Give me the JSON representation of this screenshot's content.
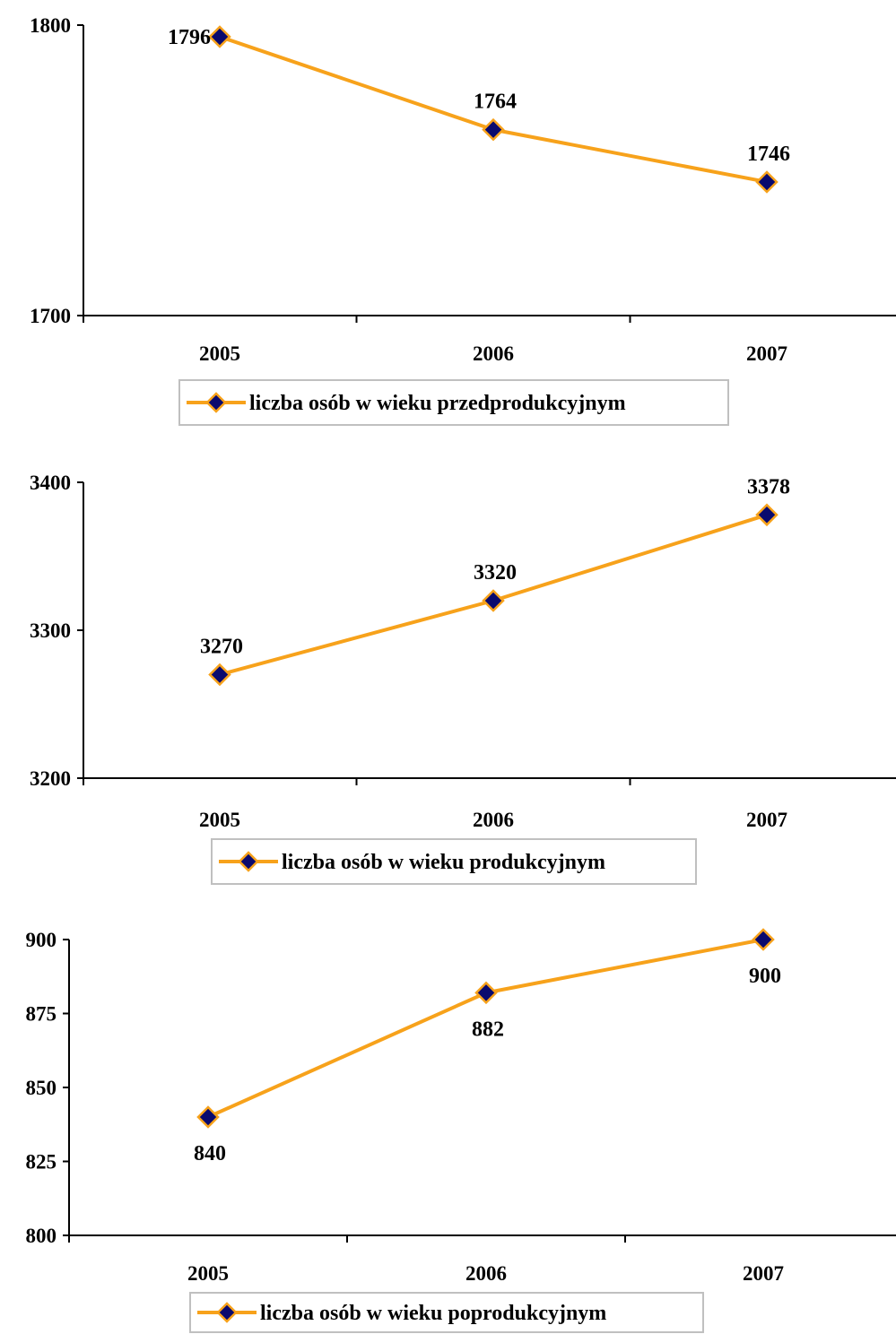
{
  "colors": {
    "line": "#F7A21B",
    "marker_fill": "#0A0A6E",
    "marker_stroke": "#F7A21B",
    "axis": "#000000",
    "legend_border": "#C0C0C0"
  },
  "chart_data": [
    {
      "type": "line",
      "categories": [
        "2005",
        "2006",
        "2007"
      ],
      "series": [
        {
          "name": "liczba osób w wieku przedprodukcyjnym",
          "values": [
            1796,
            1764,
            1746
          ]
        }
      ],
      "data_labels": [
        "1796",
        "1764",
        "1746"
      ],
      "data_label_position": "above",
      "ylim": [
        1700,
        1800
      ],
      "y_ticks": [
        "1700",
        "1800"
      ],
      "y_tick_values": [
        1700,
        1800
      ],
      "legend": "bottom",
      "grid": false
    },
    {
      "type": "line",
      "categories": [
        "2005",
        "2006",
        "2007"
      ],
      "series": [
        {
          "name": "liczba osób w wieku produkcyjnym",
          "values": [
            3270,
            3320,
            3378
          ]
        }
      ],
      "data_labels": [
        "3270",
        "3320",
        "3378"
      ],
      "data_label_position": "above",
      "ylim": [
        3200,
        3400
      ],
      "y_ticks": [
        "3200",
        "3300",
        "3400"
      ],
      "y_tick_values": [
        3200,
        3300,
        3400
      ],
      "legend": "bottom",
      "grid": false
    },
    {
      "type": "line",
      "categories": [
        "2005",
        "2006",
        "2007"
      ],
      "series": [
        {
          "name": "liczba osób w wieku poprodukcyjnym",
          "values": [
            840,
            882,
            900
          ]
        }
      ],
      "data_labels": [
        "840",
        "882",
        "900"
      ],
      "data_label_position": "below",
      "ylim": [
        800,
        900
      ],
      "y_ticks": [
        "800",
        "825",
        "850",
        "875",
        "900"
      ],
      "y_tick_values": [
        800,
        825,
        850,
        875,
        900
      ],
      "legend": "bottom",
      "grid": false
    }
  ]
}
